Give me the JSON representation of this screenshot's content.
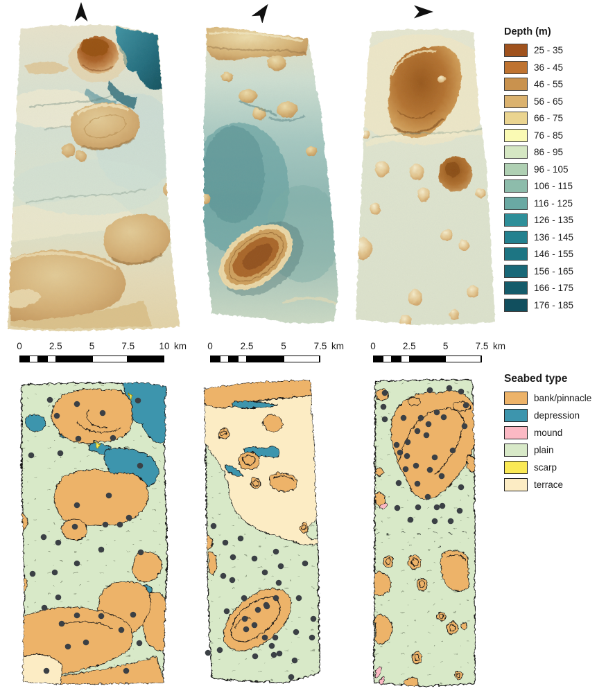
{
  "north_arrows": [
    {
      "name": "north-arrow-left",
      "rotation_deg": 0
    },
    {
      "name": "north-arrow-middle",
      "rotation_deg": 35
    },
    {
      "name": "north-arrow-right",
      "rotation_deg": 90
    }
  ],
  "depth_legend": {
    "title": "Depth (m)",
    "items": [
      {
        "label": "25 - 35",
        "color": "#a0521d"
      },
      {
        "label": "36 - 45",
        "color": "#bf7330"
      },
      {
        "label": "46 - 55",
        "color": "#c9924e"
      },
      {
        "label": "56 - 65",
        "color": "#dbb26e"
      },
      {
        "label": "66 - 75",
        "color": "#ead490"
      },
      {
        "label": "76 - 85",
        "color": "#fafab4"
      },
      {
        "label": "86 - 95",
        "color": "#d5e7c3"
      },
      {
        "label": "96 - 105",
        "color": "#afd0b3"
      },
      {
        "label": "106 - 115",
        "color": "#8dbcab"
      },
      {
        "label": "116 - 125",
        "color": "#6aa9a3"
      },
      {
        "label": "126 - 135",
        "color": "#2e8f99"
      },
      {
        "label": "136 - 145",
        "color": "#23818f"
      },
      {
        "label": "146 - 155",
        "color": "#1d7583"
      },
      {
        "label": "156 - 165",
        "color": "#186878"
      },
      {
        "label": "166 - 175",
        "color": "#155c6b"
      },
      {
        "label": "176 - 185",
        "color": "#114f5e"
      }
    ]
  },
  "seabed_legend": {
    "title": "Seabed type",
    "items": [
      {
        "label": "bank/pinnacle",
        "color": "#edb369"
      },
      {
        "label": "depression",
        "color": "#3d95ad"
      },
      {
        "label": "mound",
        "color": "#fbb9c4"
      },
      {
        "label": "plain",
        "color": "#d8e9c8"
      },
      {
        "label": "scarp",
        "color": "#fae955"
      },
      {
        "label": "terrace",
        "color": "#fcecc4"
      }
    ]
  },
  "scale_bars": [
    {
      "ticks": [
        "0",
        "2.5",
        "5",
        "7.5",
        "10"
      ],
      "unit": "km"
    },
    {
      "ticks": [
        "0",
        "2.5",
        "5",
        "7.5"
      ],
      "unit": "km"
    },
    {
      "ticks": [
        "0",
        "2.5",
        "5",
        "7.5"
      ],
      "unit": "km"
    }
  ],
  "colors": {
    "bank": "#edb369",
    "depression": "#3d95ad",
    "mound": "#fbb9c4",
    "plain": "#d8e9c8",
    "scarp": "#fae955",
    "terrace": "#fcecc4",
    "dot": "#3b4045",
    "outline": "#161616"
  },
  "sample_points": {
    "panel1": [
      [
        48,
        29
      ],
      [
        87,
        35
      ],
      [
        124,
        48
      ],
      [
        175,
        30
      ],
      [
        58,
        52
      ],
      [
        89,
        85
      ],
      [
        139,
        84
      ],
      [
        21,
        109
      ],
      [
        63,
        106
      ],
      [
        178,
        124
      ],
      [
        133,
        167
      ],
      [
        87,
        181
      ],
      [
        162,
        199
      ],
      [
        128,
        209
      ],
      [
        149,
        209
      ],
      [
        84,
        212
      ],
      [
        39,
        227
      ],
      [
        60,
        235
      ],
      [
        122,
        245
      ],
      [
        179,
        249
      ],
      [
        87,
        265
      ],
      [
        23,
        280
      ],
      [
        55,
        278
      ],
      [
        60,
        314
      ],
      [
        40,
        329
      ],
      [
        87,
        340
      ],
      [
        122,
        341
      ],
      [
        168,
        339
      ],
      [
        65,
        352
      ],
      [
        151,
        361
      ],
      [
        74,
        385
      ],
      [
        100,
        379
      ],
      [
        177,
        380
      ],
      [
        43,
        420
      ],
      [
        158,
        420
      ]
    ],
    "panel2": [
      [
        18,
        219
      ],
      [
        35,
        243
      ],
      [
        57,
        237
      ],
      [
        46,
        264
      ],
      [
        77,
        266
      ],
      [
        108,
        256
      ],
      [
        115,
        277
      ],
      [
        150,
        273
      ],
      [
        92,
        286
      ],
      [
        32,
        291
      ],
      [
        45,
        297
      ],
      [
        112,
        301
      ],
      [
        108,
        323
      ],
      [
        141,
        323
      ],
      [
        94,
        333
      ],
      [
        62,
        323
      ],
      [
        37,
        342
      ],
      [
        82,
        340
      ],
      [
        63,
        353
      ],
      [
        95,
        335
      ],
      [
        77,
        362
      ],
      [
        65,
        368
      ],
      [
        92,
        380
      ],
      [
        107,
        380
      ],
      [
        102,
        392
      ],
      [
        113,
        403
      ],
      [
        105,
        405
      ],
      [
        78,
        407
      ],
      [
        27,
        398
      ],
      [
        10,
        402
      ],
      [
        137,
        372
      ],
      [
        162,
        353
      ],
      [
        160,
        380
      ],
      [
        135,
        413
      ],
      [
        130,
        437
      ]
    ],
    "panel3": [
      [
        21,
        22
      ],
      [
        86,
        18
      ],
      [
        114,
        15
      ],
      [
        131,
        20
      ],
      [
        19,
        42
      ],
      [
        96,
        50
      ],
      [
        106,
        57
      ],
      [
        138,
        40
      ],
      [
        21,
        60
      ],
      [
        48,
        58
      ],
      [
        73,
        58
      ],
      [
        84,
        67
      ],
      [
        68,
        77
      ],
      [
        81,
        83
      ],
      [
        136,
        70
      ],
      [
        38,
        97
      ],
      [
        54,
        93
      ],
      [
        43,
        108
      ],
      [
        53,
        113
      ],
      [
        66,
        127
      ],
      [
        51,
        132
      ],
      [
        86,
        133
      ],
      [
        93,
        115
      ],
      [
        119,
        105
      ],
      [
        103,
        142
      ],
      [
        131,
        158
      ],
      [
        68,
        153
      ],
      [
        41,
        152
      ],
      [
        83,
        172
      ],
      [
        104,
        185
      ],
      [
        129,
        192
      ],
      [
        39,
        188
      ],
      [
        69,
        187
      ],
      [
        96,
        187
      ],
      [
        58,
        205
      ],
      [
        93,
        207
      ],
      [
        116,
        207
      ]
    ]
  }
}
